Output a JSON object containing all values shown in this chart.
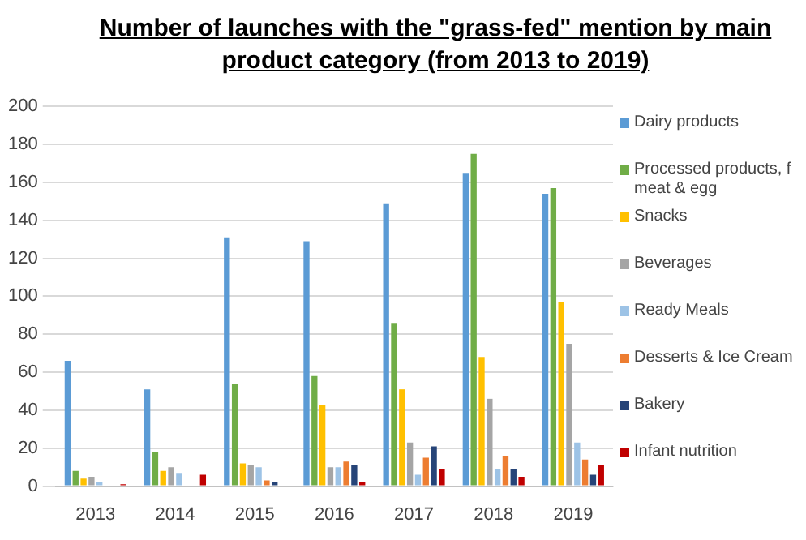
{
  "chart_data": {
    "type": "bar",
    "title": "Number of launches with the \"grass-fed\" mention by main product category (from 2013 to 2019)",
    "categories": [
      "2013",
      "2014",
      "2015",
      "2016",
      "2017",
      "2018",
      "2019"
    ],
    "series": [
      {
        "name": "Dairy products",
        "color": "#5b9bd5",
        "values": [
          66,
          51,
          131,
          129,
          149,
          165,
          154
        ]
      },
      {
        "name": "Processed products, f meat & egg",
        "color": "#70ad47",
        "values": [
          8,
          18,
          54,
          58,
          86,
          175,
          157
        ]
      },
      {
        "name": "Snacks",
        "color": "#ffc000",
        "values": [
          4,
          8,
          12,
          43,
          51,
          68,
          97
        ]
      },
      {
        "name": "Beverages",
        "color": "#a5a5a5",
        "values": [
          5,
          10,
          11,
          10,
          23,
          46,
          75
        ]
      },
      {
        "name": "Ready Meals",
        "color": "#9dc3e6",
        "values": [
          2,
          7,
          10,
          10,
          6,
          9,
          23
        ]
      },
      {
        "name": "Desserts & Ice Cream",
        "color": "#ed7d31",
        "values": [
          0,
          0,
          3,
          13,
          15,
          16,
          14
        ]
      },
      {
        "name": "Bakery",
        "color": "#264478",
        "values": [
          0,
          0,
          2,
          11,
          21,
          9,
          6
        ]
      },
      {
        "name": "Infant nutrition",
        "color": "#c00000",
        "values": [
          1,
          6,
          0,
          2,
          9,
          5,
          11
        ]
      }
    ],
    "ylim": [
      0,
      200
    ],
    "yticks": [
      0,
      20,
      40,
      60,
      80,
      100,
      120,
      140,
      160,
      180,
      200
    ],
    "grid": "y",
    "legend": "right"
  }
}
